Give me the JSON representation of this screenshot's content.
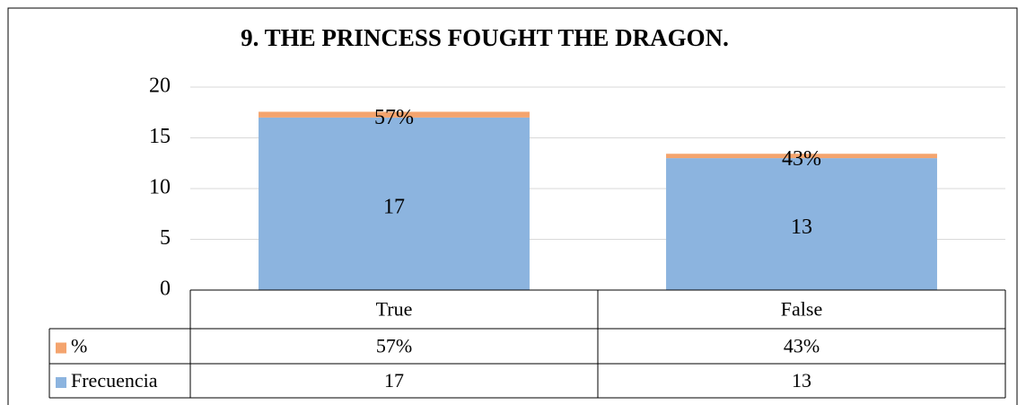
{
  "chart_data": {
    "type": "bar",
    "stacked": true,
    "title": "9. THE PRINCESS FOUGHT THE DRAGON.",
    "categories": [
      "True",
      "False"
    ],
    "series": [
      {
        "name": "%",
        "color": "#f4a46e",
        "values": [
          0.57,
          0.43
        ],
        "value_labels": [
          "57%",
          "43%"
        ]
      },
      {
        "name": "Frecuencia",
        "color": "#8cb4df",
        "values": [
          17,
          13
        ]
      }
    ],
    "ylim": [
      0,
      20
    ],
    "yticks": [
      0,
      5,
      10,
      15,
      20
    ],
    "grid": true,
    "data_table": true
  }
}
